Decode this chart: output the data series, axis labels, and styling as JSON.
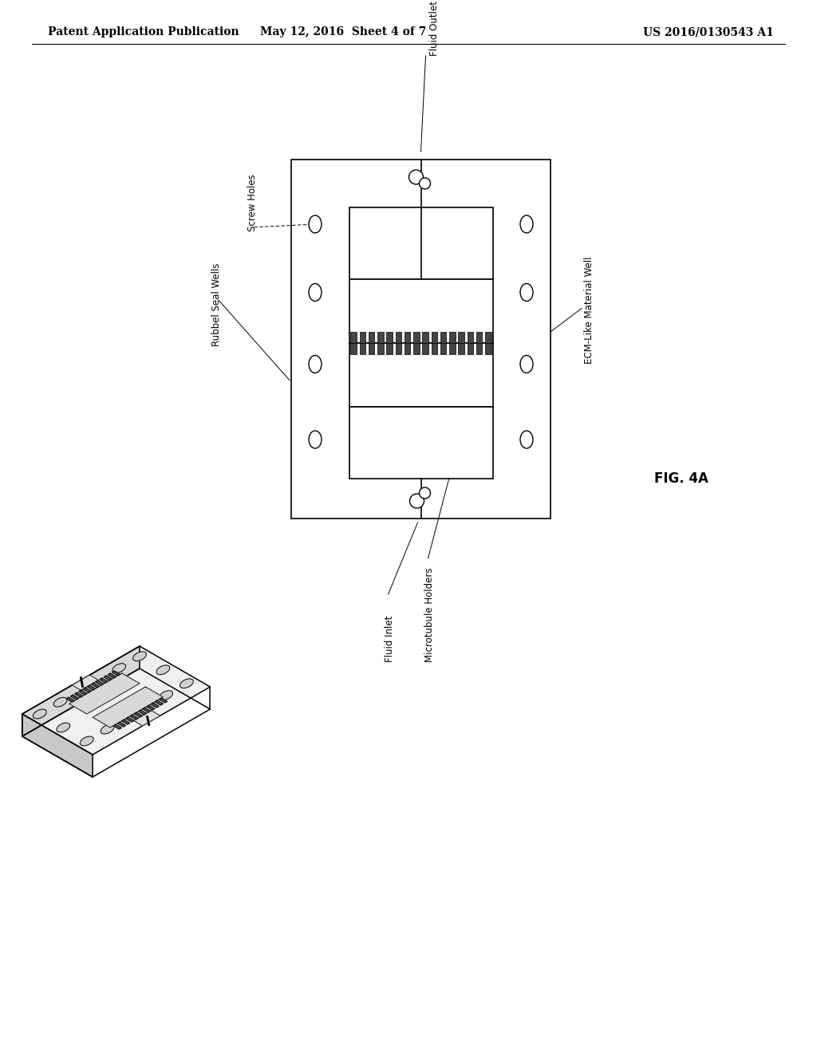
{
  "background_color": "#ffffff",
  "header_left": "Patent Application Publication",
  "header_center": "May 12, 2016  Sheet 4 of 7",
  "header_right": "US 2016/0130543 A1",
  "fig_label": "FIG. 4A",
  "header_font_size": 10,
  "label_font_size": 8.5,
  "fig_label_font_size": 12
}
